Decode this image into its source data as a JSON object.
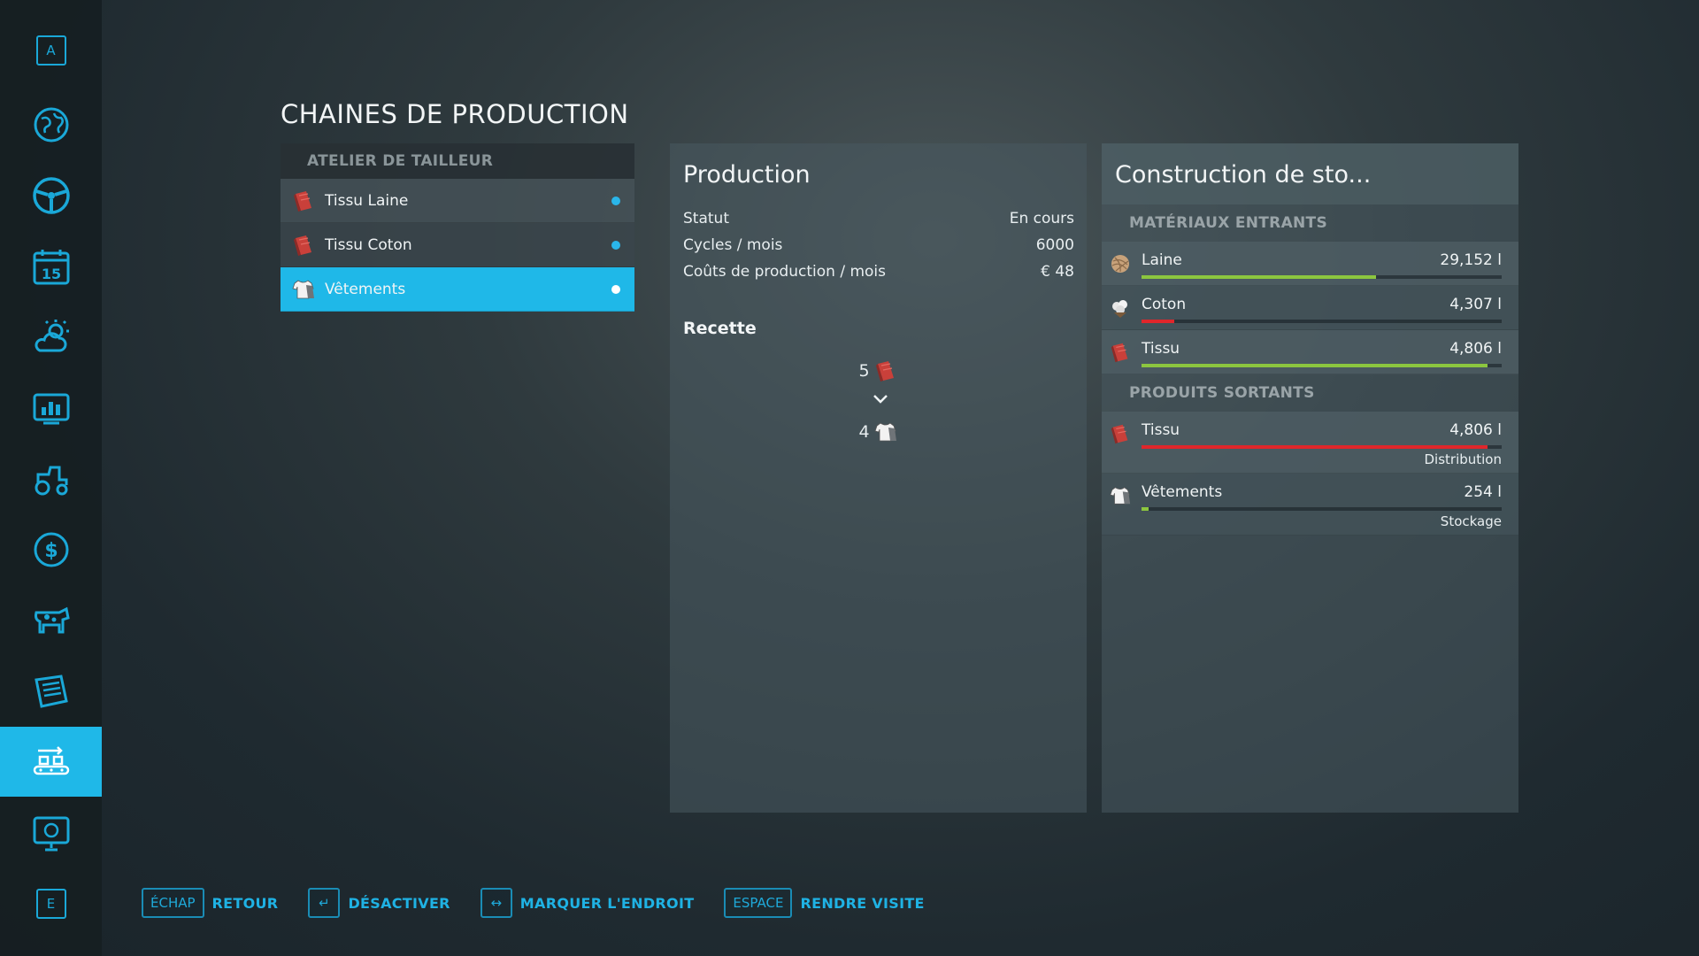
{
  "sidebar": {
    "top_key": "A",
    "bottom_key": "E",
    "items": [
      {
        "icon": "globe-icon"
      },
      {
        "icon": "steering-wheel-icon"
      },
      {
        "icon": "calendar-icon",
        "text": "15"
      },
      {
        "icon": "weather-icon"
      },
      {
        "icon": "statistics-icon"
      },
      {
        "icon": "tractor-icon"
      },
      {
        "icon": "finance-icon"
      },
      {
        "icon": "animals-icon"
      },
      {
        "icon": "contracts-icon"
      },
      {
        "icon": "production-icon",
        "active": true
      },
      {
        "icon": "help-icon"
      }
    ]
  },
  "page_title": "CHAINES DE PRODUCTION",
  "production_list": {
    "header": "ATELIER DE TAILLEUR",
    "items": [
      {
        "label": "Tissu Laine",
        "icon": "fabric-icon"
      },
      {
        "label": "Tissu Coton",
        "icon": "fabric-icon"
      },
      {
        "label": "Vêtements",
        "icon": "clothes-icon",
        "selected": true
      }
    ]
  },
  "production": {
    "title": "Production",
    "rows": [
      {
        "label": "Statut",
        "value": "En cours"
      },
      {
        "label": "Cycles / mois",
        "value": "6000"
      },
      {
        "label": "Coûts de production / mois",
        "value": "€ 48"
      }
    ],
    "recipe_title": "Recette",
    "recipe_input_qty": "5",
    "recipe_output_qty": "4"
  },
  "storage": {
    "title": "Construction de sto...",
    "inputs_label": "MATÉRIAUX ENTRANTS",
    "inputs": [
      {
        "name": "Laine",
        "value": "29,152 l",
        "fill": 0.65,
        "color": "#8cc63f",
        "icon": "wool-icon"
      },
      {
        "name": "Coton",
        "value": "4,307 l",
        "fill": 0.09,
        "color": "#e0262b",
        "icon": "cotton-icon"
      },
      {
        "name": "Tissu",
        "value": "4,806 l",
        "fill": 0.96,
        "color": "#8cc63f",
        "icon": "fabric-icon"
      }
    ],
    "outputs_label": "PRODUITS SORTANTS",
    "outputs": [
      {
        "name": "Tissu",
        "value": "4,806 l",
        "fill": 0.96,
        "color": "#e0262b",
        "dest": "Distribution",
        "icon": "fabric-icon"
      },
      {
        "name": "Vêtements",
        "value": "254 l",
        "fill": 0.02,
        "color": "#8cc63f",
        "dest": "Stockage",
        "icon": "clothes-icon"
      }
    ]
  },
  "hints": [
    {
      "key": "ÉCHAP",
      "label": "RETOUR"
    },
    {
      "key": "↵",
      "label": "DÉSACTIVER"
    },
    {
      "key": "↔",
      "label": "MARQUER L'ENDROIT"
    },
    {
      "key": "ESPACE",
      "label": "RENDRE VISITE"
    }
  ]
}
